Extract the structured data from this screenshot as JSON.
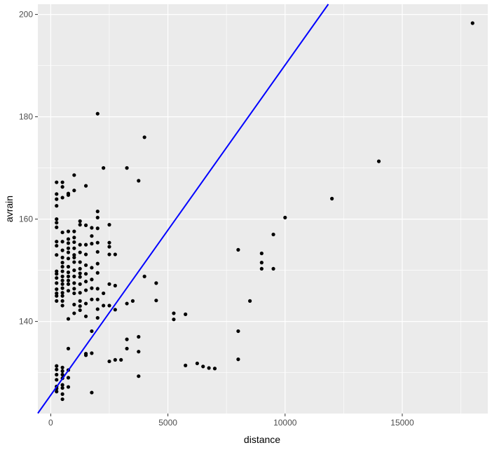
{
  "chart_data": {
    "type": "scatter",
    "title": "",
    "xlabel": "distance",
    "ylabel": "avrain",
    "xlim": [
      -550,
      18650
    ],
    "ylim": [
      122,
      202
    ],
    "x_ticks": [
      0,
      5000,
      10000,
      15000
    ],
    "x_tick_labels": [
      "0",
      "5000",
      "10000",
      "15000"
    ],
    "y_ticks": [
      140,
      160,
      180,
      200
    ],
    "y_tick_labels": [
      "140",
      "160",
      "180",
      "200"
    ],
    "grid": true,
    "legend": "none",
    "colors": {
      "panel_background": "#ebebeb",
      "grid_major": "#ffffff",
      "points": "#000000",
      "fit_line": "#0000ff"
    },
    "fit_line": {
      "slope": 0.00645,
      "intercept": 125.6
    },
    "points": [
      [
        250,
        167.2
      ],
      [
        500,
        167.2
      ],
      [
        500,
        166.3
      ],
      [
        250,
        164.9
      ],
      [
        250,
        163.9
      ],
      [
        250,
        162.6
      ],
      [
        500,
        164.2
      ],
      [
        750,
        164.7
      ],
      [
        750,
        165
      ],
      [
        1000,
        165.6
      ],
      [
        1000,
        168.6
      ],
      [
        1500,
        166.5
      ],
      [
        250,
        160
      ],
      [
        250,
        159.3
      ],
      [
        250,
        158.4
      ],
      [
        250,
        155.6
      ],
      [
        250,
        154.8
      ],
      [
        250,
        153
      ],
      [
        250,
        149.8
      ],
      [
        250,
        149.3
      ],
      [
        250,
        148.5
      ],
      [
        250,
        147.5
      ],
      [
        250,
        146.3
      ],
      [
        250,
        145.5
      ],
      [
        250,
        145
      ],
      [
        250,
        144
      ],
      [
        500,
        157.4
      ],
      [
        500,
        155.6
      ],
      [
        500,
        153.9
      ],
      [
        500,
        152.5
      ],
      [
        500,
        151.5
      ],
      [
        500,
        150.7
      ],
      [
        500,
        149.8
      ],
      [
        500,
        148.8
      ],
      [
        500,
        148
      ],
      [
        500,
        147.3
      ],
      [
        500,
        146.5
      ],
      [
        500,
        145.6
      ],
      [
        500,
        145
      ],
      [
        500,
        144
      ],
      [
        500,
        143.1
      ],
      [
        750,
        157.6
      ],
      [
        750,
        156.1
      ],
      [
        750,
        155.3
      ],
      [
        750,
        154.3
      ],
      [
        750,
        153.5
      ],
      [
        750,
        152.3
      ],
      [
        750,
        150.7
      ],
      [
        750,
        149.6
      ],
      [
        750,
        148.8
      ],
      [
        750,
        148
      ],
      [
        750,
        147.3
      ],
      [
        750,
        146
      ],
      [
        750,
        140.5
      ],
      [
        1000,
        157.6
      ],
      [
        1000,
        156.4
      ],
      [
        1000,
        155.5
      ],
      [
        1000,
        154.3
      ],
      [
        1000,
        153
      ],
      [
        1000,
        152.5
      ],
      [
        1000,
        151.6
      ],
      [
        1000,
        150
      ],
      [
        1000,
        148.8
      ],
      [
        1000,
        147.5
      ],
      [
        1000,
        146.4
      ],
      [
        1000,
        145.5
      ],
      [
        1000,
        143.3
      ],
      [
        1000,
        141.6
      ],
      [
        1250,
        159.6
      ],
      [
        1250,
        158.9
      ],
      [
        1250,
        155
      ],
      [
        1250,
        153.5
      ],
      [
        1250,
        151.6
      ],
      [
        1250,
        150.3
      ],
      [
        1250,
        149.4
      ],
      [
        1250,
        148.7
      ],
      [
        1250,
        147.3
      ],
      [
        1250,
        145.6
      ],
      [
        1250,
        144
      ],
      [
        1250,
        143
      ],
      [
        1250,
        142.2
      ],
      [
        1500,
        158.8
      ],
      [
        1500,
        155
      ],
      [
        1500,
        153.1
      ],
      [
        1500,
        151
      ],
      [
        1500,
        149.3
      ],
      [
        1500,
        147.8
      ],
      [
        1500,
        146.1
      ],
      [
        1500,
        143.5
      ],
      [
        1500,
        141
      ],
      [
        1500,
        133.7
      ],
      [
        1750,
        158.3
      ],
      [
        1750,
        156.7
      ],
      [
        1750,
        155.2
      ],
      [
        1750,
        150.5
      ],
      [
        1750,
        148.2
      ],
      [
        1750,
        146.5
      ],
      [
        1750,
        144.3
      ],
      [
        1750,
        138.1
      ],
      [
        1750,
        133.8
      ],
      [
        1750,
        126.1
      ],
      [
        2000,
        180.6
      ],
      [
        2000,
        161.5
      ],
      [
        2000,
        160.3
      ],
      [
        2000,
        158.2
      ],
      [
        2000,
        155.4
      ],
      [
        2000,
        153.6
      ],
      [
        2000,
        151.3
      ],
      [
        2000,
        149.5
      ],
      [
        2000,
        146.4
      ],
      [
        2000,
        144.3
      ],
      [
        2000,
        142.4
      ],
      [
        2000,
        140.7
      ],
      [
        2250,
        170
      ],
      [
        2250,
        145.5
      ],
      [
        2250,
        143.1
      ],
      [
        2500,
        158.9
      ],
      [
        2500,
        155.4
      ],
      [
        2500,
        154.6
      ],
      [
        2500,
        153.1
      ],
      [
        2500,
        147.3
      ],
      [
        2500,
        143.1
      ],
      [
        2500,
        132.2
      ],
      [
        2750,
        153.1
      ],
      [
        2750,
        147
      ],
      [
        2750,
        142.3
      ],
      [
        2750,
        132.5
      ],
      [
        3000,
        132.5
      ],
      [
        3250,
        170
      ],
      [
        3250,
        143.5
      ],
      [
        3250,
        136.5
      ],
      [
        3250,
        134.7
      ],
      [
        3500,
        144
      ],
      [
        3750,
        167.5
      ],
      [
        3750,
        137
      ],
      [
        3750,
        134.1
      ],
      [
        3750,
        129.3
      ],
      [
        4000,
        176
      ],
      [
        4000,
        148.8
      ],
      [
        4500,
        147.5
      ],
      [
        4500,
        144.1
      ],
      [
        5250,
        141.6
      ],
      [
        5250,
        140.4
      ],
      [
        5750,
        141.4
      ],
      [
        5750,
        131.4
      ],
      [
        6250,
        131.8
      ],
      [
        6500,
        131.2
      ],
      [
        6750,
        130.9
      ],
      [
        7000,
        130.8
      ],
      [
        8000,
        154
      ],
      [
        8000,
        138.1
      ],
      [
        8000,
        132.6
      ],
      [
        8500,
        144
      ],
      [
        9000,
        153.3
      ],
      [
        9000,
        151.5
      ],
      [
        9000,
        150.3
      ],
      [
        9500,
        157
      ],
      [
        9500,
        150.3
      ],
      [
        10000,
        160.3
      ],
      [
        12000,
        164
      ],
      [
        14000,
        171.3
      ],
      [
        18000,
        198.3
      ],
      [
        250,
        131.3
      ],
      [
        250,
        130.6
      ],
      [
        250,
        129.6
      ],
      [
        250,
        128.6
      ],
      [
        250,
        127.3
      ],
      [
        250,
        126.9
      ],
      [
        250,
        126.3
      ],
      [
        500,
        131
      ],
      [
        500,
        130.3
      ],
      [
        500,
        129.6
      ],
      [
        500,
        128.9
      ],
      [
        500,
        127.6
      ],
      [
        500,
        127
      ],
      [
        500,
        125.8
      ],
      [
        500,
        124.8
      ],
      [
        750,
        134.7
      ],
      [
        750,
        130.5
      ],
      [
        750,
        129
      ],
      [
        750,
        127.2
      ],
      [
        1500,
        133.4
      ]
    ]
  }
}
